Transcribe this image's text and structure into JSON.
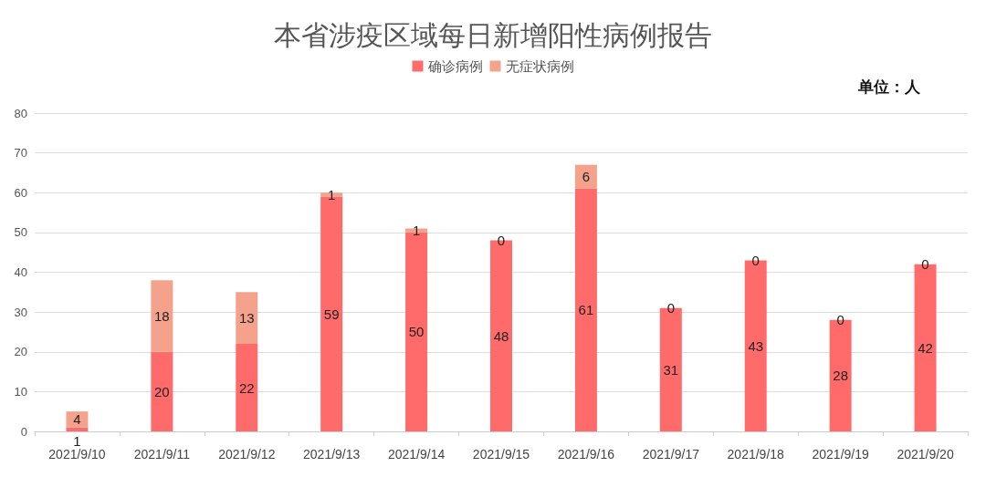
{
  "chart_data": {
    "type": "bar",
    "title": "本省涉疫区域每日新增阳性病例报告",
    "annotations": [
      "单位：人"
    ],
    "categories": [
      "2021/9/10",
      "2021/9/11",
      "2021/9/12",
      "2021/9/13",
      "2021/9/14",
      "2021/9/15",
      "2021/9/16",
      "2021/9/17",
      "2021/9/18",
      "2021/9/19",
      "2021/9/20"
    ],
    "series": [
      {
        "name": "确诊病例",
        "color": "#ff6b6b",
        "values": [
          1,
          20,
          22,
          59,
          50,
          48,
          61,
          31,
          43,
          28,
          42
        ]
      },
      {
        "name": "无症状病例",
        "color": "#f4a28c",
        "values": [
          4,
          18,
          13,
          1,
          1,
          0,
          6,
          0,
          0,
          0,
          0
        ]
      }
    ],
    "stacked": true,
    "data_labels": true,
    "ylim": [
      0,
      80
    ],
    "yticks": [
      0,
      10,
      20,
      30,
      40,
      50,
      60,
      70,
      80
    ],
    "grid": "y",
    "legend": "top"
  }
}
